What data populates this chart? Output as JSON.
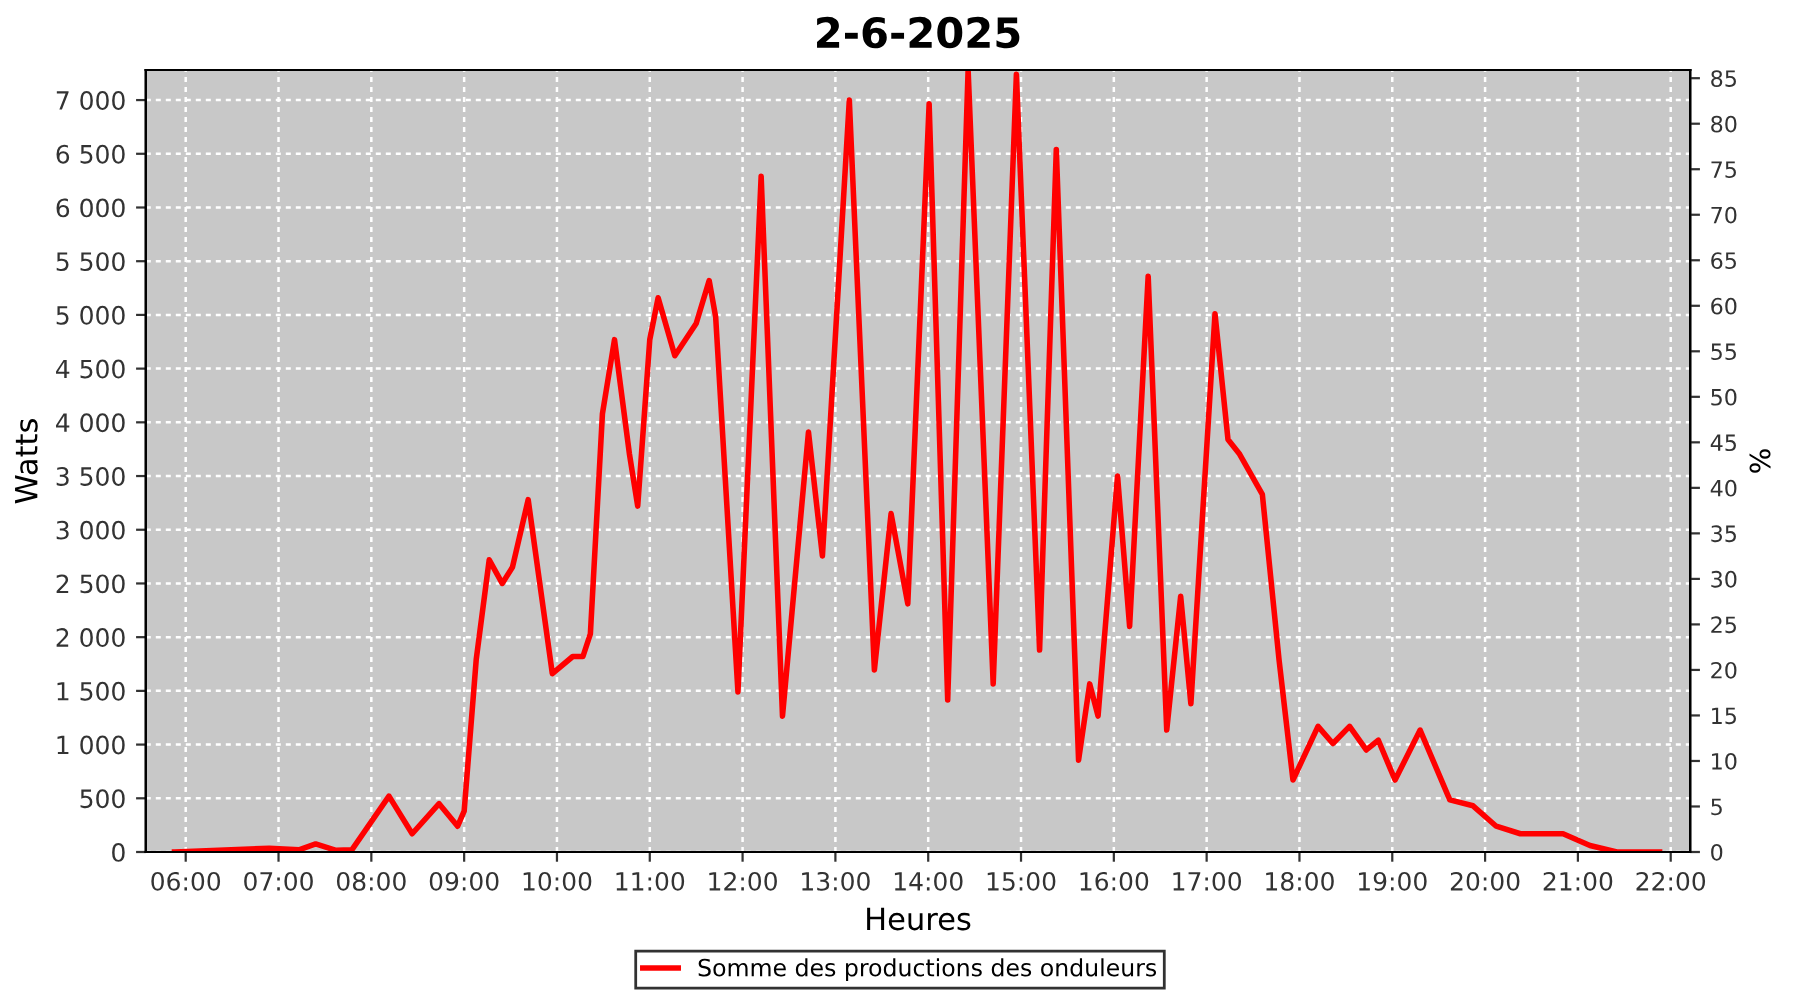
{
  "chart_data": {
    "type": "line",
    "title": "2-6-2025",
    "xlabel": "Heures",
    "ylabel": "Watts",
    "y2label": "%",
    "xlim": [
      5.57,
      22.21
    ],
    "ylim": [
      0,
      7280
    ],
    "y2lim": [
      0,
      85.9
    ],
    "xticks": [
      {
        "value": 6,
        "label": "06:00"
      },
      {
        "value": 7,
        "label": "07:00"
      },
      {
        "value": 8,
        "label": "08:00"
      },
      {
        "value": 9,
        "label": "09:00"
      },
      {
        "value": 10,
        "label": "10:00"
      },
      {
        "value": 11,
        "label": "11:00"
      },
      {
        "value": 12,
        "label": "12:00"
      },
      {
        "value": 13,
        "label": "13:00"
      },
      {
        "value": 14,
        "label": "14:00"
      },
      {
        "value": 15,
        "label": "15:00"
      },
      {
        "value": 16,
        "label": "16:00"
      },
      {
        "value": 17,
        "label": "17:00"
      },
      {
        "value": 18,
        "label": "18:00"
      },
      {
        "value": 19,
        "label": "19:00"
      },
      {
        "value": 20,
        "label": "20:00"
      },
      {
        "value": 21,
        "label": "21:00"
      },
      {
        "value": 22,
        "label": "22:00"
      }
    ],
    "yticks": [
      0,
      500,
      {
        "value": 1000,
        "label": "1 000"
      },
      {
        "value": 1500,
        "label": "1 500"
      },
      {
        "value": 2000,
        "label": "2 000"
      },
      {
        "value": 2500,
        "label": "2 500"
      },
      {
        "value": 3000,
        "label": "3 000"
      },
      {
        "value": 3500,
        "label": "3 500"
      },
      {
        "value": 4000,
        "label": "4 000"
      },
      {
        "value": 4500,
        "label": "4 500"
      },
      {
        "value": 5000,
        "label": "5 000"
      },
      {
        "value": 5500,
        "label": "5 500"
      },
      {
        "value": 6000,
        "label": "6 000"
      },
      {
        "value": 6500,
        "label": "6 500"
      },
      {
        "value": 7000,
        "label": "7 000"
      }
    ],
    "y2ticks": [
      0,
      5,
      10,
      15,
      20,
      25,
      30,
      35,
      40,
      45,
      50,
      55,
      60,
      65,
      70,
      75,
      80,
      85
    ],
    "grid": true,
    "legend": "bottom",
    "line_style": "solid",
    "series": [
      {
        "name": "Somme des productions des onduleurs",
        "color": "#ff0000",
        "x": [
          5.88,
          6.9,
          7.22,
          7.4,
          7.62,
          7.79,
          8.19,
          8.44,
          8.73,
          8.93,
          9.0,
          9.13,
          9.27,
          9.41,
          9.52,
          9.69,
          9.81,
          9.95,
          10.17,
          10.28,
          10.36,
          10.49,
          10.62,
          10.78,
          10.87,
          11.0,
          11.09,
          11.27,
          11.5,
          11.64,
          11.71,
          11.95,
          12.2,
          12.43,
          12.71,
          12.86,
          13.15,
          13.42,
          13.6,
          13.78,
          14.01,
          14.21,
          14.43,
          14.7,
          14.95,
          15.2,
          15.38,
          15.62,
          15.74,
          15.83,
          16.04,
          16.17,
          16.37,
          16.57,
          16.72,
          16.83,
          17.09,
          17.23,
          17.35,
          17.6,
          17.78,
          17.93,
          18.2,
          18.36,
          18.54,
          18.72,
          18.85,
          19.03,
          19.3,
          19.62,
          19.87,
          20.12,
          20.38,
          20.84,
          21.13,
          21.42,
          21.88
        ],
        "values": [
          0,
          35,
          20,
          75,
          15,
          20,
          520,
          170,
          450,
          240,
          380,
          1790,
          2720,
          2500,
          2650,
          3280,
          2530,
          1660,
          1820,
          1820,
          2030,
          4080,
          4770,
          3710,
          3220,
          4770,
          5160,
          4620,
          4920,
          5320,
          4980,
          1490,
          6290,
          1265,
          3910,
          2755,
          7000,
          1695,
          3150,
          2310,
          6965,
          1415,
          7280,
          1565,
          7240,
          1880,
          6540,
          855,
          1565,
          1265,
          3500,
          2100,
          5360,
          1135,
          2380,
          1380,
          5010,
          3840,
          3710,
          3330,
          1790,
          670,
          1170,
          1010,
          1170,
          950,
          1040,
          670,
          1135,
          485,
          430,
          240,
          170,
          170,
          60,
          0,
          0
        ]
      }
    ]
  }
}
